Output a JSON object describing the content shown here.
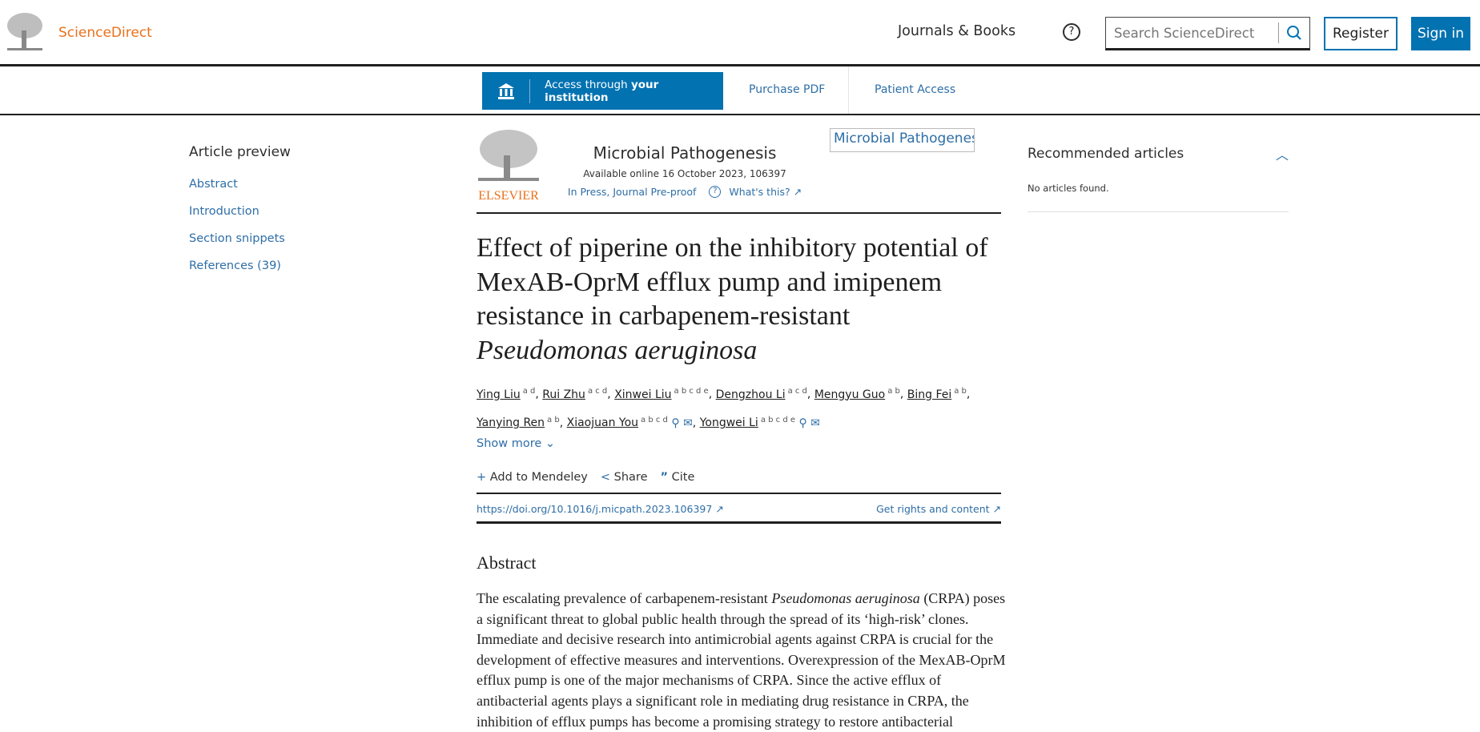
{
  "header": {
    "brand": "ScienceDirect",
    "journals_books": "Journals & Books",
    "search_placeholder": "Search ScienceDirect",
    "register": "Register",
    "sign_in": "Sign in"
  },
  "access_bar": {
    "access_prefix": "Access through ",
    "access_bold": "your institution",
    "purchase_pdf": "Purchase PDF",
    "patient_access": "Patient Access"
  },
  "left_nav": {
    "title": "Article preview",
    "items": [
      "Abstract",
      "Introduction",
      "Section snippets",
      "References (39)"
    ]
  },
  "journal": {
    "publisher": "ELSEVIER",
    "name": "Microbial Pathogenesis",
    "available": "Available online 16 October 2023, 106397",
    "status": "In Press, Journal Pre-proof",
    "whats_this": "What's this?",
    "cover_alt": "Microbial Pathogenesis"
  },
  "article": {
    "title_main": "Effect of piperine on the inhibitory potential of MexAB-OprM efflux pump and imipenem resistance in carbapenem-resistant",
    "title_italic": "Pseudomonas aeruginosa",
    "authors": [
      {
        "name": "Ying Liu",
        "aff": "a d"
      },
      {
        "name": "Rui Zhu",
        "aff": "a c d"
      },
      {
        "name": "Xinwei Liu",
        "aff": "a b c d e"
      },
      {
        "name": "Dengzhou Li",
        "aff": "a c d"
      },
      {
        "name": "Mengyu Guo",
        "aff": "a b"
      },
      {
        "name": "Bing Fei",
        "aff": "a b"
      },
      {
        "name": "Yanying Ren",
        "aff": "a b"
      },
      {
        "name": "Xiaojuan You",
        "aff": "a b c d"
      },
      {
        "name": "Yongwei Li",
        "aff": "a b c d e"
      }
    ],
    "show_more": "Show more",
    "actions": {
      "mendeley": "Add to Mendeley",
      "share": "Share",
      "cite": "Cite"
    },
    "doi": "https://doi.org/10.1016/j.micpath.2023.106397",
    "rights": "Get rights and content",
    "abstract_heading": "Abstract",
    "abstract_pre": "The escalating prevalence of carbapenem-resistant ",
    "abstract_italic": "Pseudomonas aeruginosa",
    "abstract_post": " (CRPA) poses a significant threat to global public health through the spread of its ‘high-risk’ clones. Immediate and decisive research into antimicrobial agents against CRPA is crucial for the development of effective measures and interventions. Overexpression of the MexAB-OprM efflux pump is one of the major mechanisms of CRPA. Since the active efflux of antibacterial agents plays a significant role in mediating drug resistance in CRPA, the inhibition of efflux pumps has become a promising strategy to restore antibacterial"
  },
  "recommended": {
    "title": "Recommended articles",
    "empty": "No articles found."
  },
  "colors": {
    "brand_orange": "#e9711c",
    "accent_blue": "#0272b1",
    "link_blue": "#2e6ea6"
  }
}
